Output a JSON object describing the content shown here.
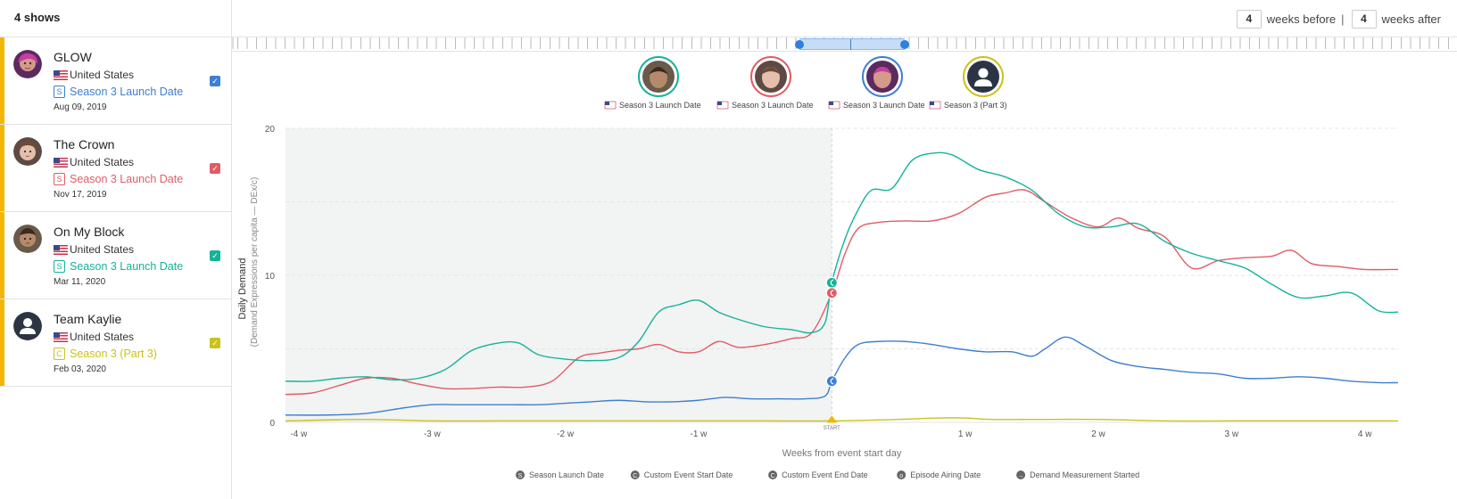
{
  "sidebar": {
    "header": "4 shows",
    "shows": [
      {
        "title": "GLOW",
        "country": "United States",
        "event_icon": "S",
        "event": "Season 3 Launch Date",
        "date": "Aug 09, 2019",
        "color": "#3d7fd0"
      },
      {
        "title": "The Crown",
        "country": "United States",
        "event_icon": "S",
        "event": "Season 3 Launch Date",
        "date": "Nov 17, 2019",
        "color": "#e05c65"
      },
      {
        "title": "On My Block",
        "country": "United States",
        "event_icon": "S",
        "event": "Season 3 Launch Date",
        "date": "Mar 11, 2020",
        "color": "#14b39a"
      },
      {
        "title": "Team Kaylie",
        "country": "United States",
        "event_icon": "C",
        "event": "Season 3 (Part 3)",
        "date": "Feb 03, 2020",
        "color": "#c9c21c"
      }
    ]
  },
  "topbar": {
    "weeks_before_value": "4",
    "weeks_before_label": "weeks before",
    "separator": "|",
    "weeks_after_value": "4",
    "weeks_after_label": "weeks after"
  },
  "chart_data": {
    "type": "line",
    "xlabel": "Weeks from event start day",
    "ylabel": "Daily Demand",
    "ylabel_sub": "(Demand Expressions per capita — DEx/c)",
    "xlim": [
      -4.1,
      4.25
    ],
    "ylim": [
      0,
      20
    ],
    "x_ticks": [
      -4,
      -3,
      -2,
      -1,
      0,
      1,
      2,
      3,
      4
    ],
    "x_tick_labels": [
      "-4 w",
      "-3 w",
      "-2 w",
      "-1 w",
      "",
      "1 w",
      "2 w",
      "3 w",
      "4 w"
    ],
    "y_ticks": [
      0,
      10,
      20
    ],
    "start_label": "START",
    "shaded_range": [
      -4.1,
      0
    ],
    "grid": "horizontal-dashed",
    "series": [
      {
        "name": "On My Block",
        "color": "#14b39a",
        "marker_value": 9.5,
        "x": [
          -4.1,
          -3.9,
          -3.7,
          -3.5,
          -3.3,
          -3.1,
          -2.9,
          -2.7,
          -2.5,
          -2.35,
          -2.2,
          -2.0,
          -1.8,
          -1.6,
          -1.45,
          -1.3,
          -1.15,
          -1.0,
          -0.85,
          -0.7,
          -0.5,
          -0.3,
          -0.15,
          -0.05,
          0,
          0.1,
          0.2,
          0.3,
          0.45,
          0.6,
          0.75,
          0.9,
          1.1,
          1.3,
          1.5,
          1.7,
          1.9,
          2.1,
          2.3,
          2.5,
          2.7,
          2.9,
          3.1,
          3.3,
          3.5,
          3.7,
          3.9,
          4.1,
          4.25
        ],
        "y": [
          2.8,
          2.8,
          3.0,
          3.1,
          2.9,
          3.0,
          3.6,
          4.9,
          5.4,
          5.4,
          4.6,
          4.3,
          4.2,
          4.4,
          5.5,
          7.5,
          8.0,
          8.3,
          7.5,
          7.0,
          6.5,
          6.3,
          6.1,
          6.8,
          9.5,
          12.5,
          14.5,
          15.8,
          15.9,
          17.8,
          18.3,
          18.2,
          17.2,
          16.7,
          15.8,
          14.2,
          13.3,
          13.3,
          13.5,
          12.3,
          11.5,
          11.0,
          10.5,
          9.4,
          8.5,
          8.6,
          8.8,
          7.6,
          7.5
        ]
      },
      {
        "name": "The Crown",
        "color": "#e05c65",
        "marker_value": 8.8,
        "x": [
          -4.1,
          -3.9,
          -3.7,
          -3.5,
          -3.3,
          -3.1,
          -2.9,
          -2.7,
          -2.5,
          -2.3,
          -2.1,
          -1.9,
          -1.75,
          -1.6,
          -1.45,
          -1.3,
          -1.15,
          -1.0,
          -0.85,
          -0.7,
          -0.5,
          -0.3,
          -0.15,
          0,
          0.1,
          0.2,
          0.35,
          0.55,
          0.75,
          0.95,
          1.15,
          1.3,
          1.45,
          1.6,
          1.8,
          2.0,
          2.15,
          2.3,
          2.5,
          2.7,
          2.9,
          3.1,
          3.3,
          3.45,
          3.6,
          3.8,
          4.0,
          4.25
        ],
        "y": [
          1.9,
          2.0,
          2.5,
          3.0,
          3.0,
          2.6,
          2.3,
          2.3,
          2.4,
          2.4,
          2.8,
          4.4,
          4.7,
          4.9,
          5.0,
          5.3,
          4.8,
          4.8,
          5.5,
          5.1,
          5.3,
          5.7,
          6.1,
          8.8,
          11.5,
          13.2,
          13.6,
          13.7,
          13.7,
          14.2,
          15.3,
          15.6,
          15.8,
          15.0,
          13.9,
          13.3,
          13.9,
          13.2,
          12.6,
          10.5,
          11.0,
          11.2,
          11.3,
          11.7,
          10.8,
          10.6,
          10.4,
          10.4
        ]
      },
      {
        "name": "GLOW",
        "color": "#3d7fd0",
        "marker_value": 2.8,
        "x": [
          -4.1,
          -3.8,
          -3.5,
          -3.2,
          -3.0,
          -2.8,
          -2.6,
          -2.4,
          -2.2,
          -2.0,
          -1.8,
          -1.6,
          -1.4,
          -1.2,
          -1.0,
          -0.8,
          -0.6,
          -0.4,
          -0.2,
          -0.05,
          0,
          0.1,
          0.2,
          0.35,
          0.55,
          0.75,
          0.95,
          1.15,
          1.35,
          1.5,
          1.6,
          1.75,
          1.9,
          2.1,
          2.3,
          2.5,
          2.7,
          2.9,
          3.1,
          3.3,
          3.5,
          3.7,
          3.9,
          4.1,
          4.25
        ],
        "y": [
          0.5,
          0.5,
          0.6,
          1.0,
          1.2,
          1.2,
          1.2,
          1.2,
          1.2,
          1.3,
          1.4,
          1.5,
          1.4,
          1.4,
          1.5,
          1.7,
          1.6,
          1.6,
          1.6,
          1.8,
          2.8,
          4.4,
          5.3,
          5.5,
          5.5,
          5.3,
          5.0,
          4.8,
          4.8,
          4.5,
          5.0,
          5.8,
          5.2,
          4.2,
          3.8,
          3.6,
          3.4,
          3.3,
          3.0,
          3.0,
          3.1,
          3.0,
          2.8,
          2.7,
          2.7
        ]
      },
      {
        "name": "Team Kaylie",
        "color": "#c9c21c",
        "marker_value": 0.1,
        "x": [
          -4.1,
          -3.5,
          -3.0,
          -2.5,
          -2.0,
          -1.5,
          -1.0,
          -0.5,
          0,
          0.5,
          0.8,
          1.0,
          1.2,
          1.5,
          2.0,
          2.5,
          3.0,
          3.5,
          4.0,
          4.25
        ],
        "y": [
          0.1,
          0.2,
          0.1,
          0.1,
          0.1,
          0.1,
          0.1,
          0.1,
          0.1,
          0.2,
          0.3,
          0.3,
          0.2,
          0.2,
          0.2,
          0.1,
          0.1,
          0.1,
          0.1,
          0.1
        ]
      }
    ],
    "top_markers": [
      {
        "avatar": "on-my-block",
        "color": "#14b39a",
        "label": "Season 3 Launch Date"
      },
      {
        "avatar": "the-crown",
        "color": "#e05c65",
        "label": "Season 3 Launch Date"
      },
      {
        "avatar": "glow",
        "color": "#3d7fd0",
        "label": "Season 3 Launch Date"
      },
      {
        "avatar": "team-kaylie",
        "color": "#c9c21c",
        "label": "Season 3 (Part 3)"
      }
    ],
    "legend": [
      {
        "icon": "S",
        "label": "Season Launch Date"
      },
      {
        "icon": "C",
        "label": "Custom Event Start Date"
      },
      {
        "icon": "C",
        "label": "Custom Event End Date"
      },
      {
        "icon": "o",
        "label": "Episode Airing Date"
      },
      {
        "icon": "→",
        "label": "Demand Measurement Started"
      }
    ]
  }
}
